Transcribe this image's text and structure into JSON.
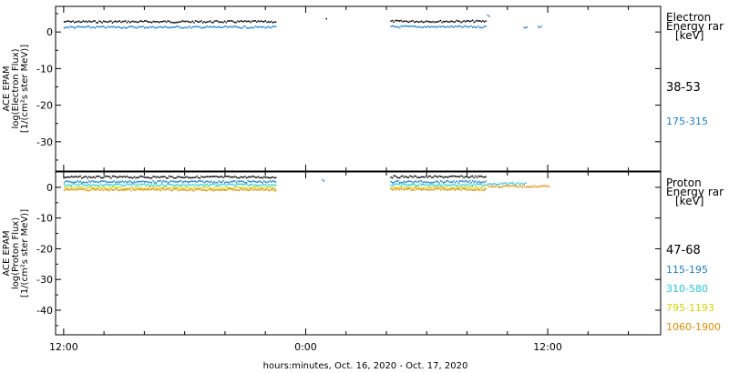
{
  "chart_data": [
    {
      "type": "scatter",
      "ylabel_lines": [
        "ACE EPAM",
        "log(Electron Flux)",
        "[1/(cm²s ster MeV)]"
      ],
      "ylim": [
        -38,
        7
      ],
      "yticks": [
        0,
        -10,
        -20,
        -30
      ],
      "legend": {
        "title_lines": [
          "Electron",
          "Energy rar",
          "[keV]"
        ],
        "entries": [
          {
            "label": "38-53",
            "color": "#000000"
          },
          {
            "label": "175-315",
            "color": "#1a7fcf"
          }
        ]
      },
      "series": [
        {
          "segments": [
            {
              "x": [
                12.0,
                22.5
              ],
              "y": 2.8
            },
            {
              "x": [
                25.0,
                25.0
              ],
              "y": 3.5
            },
            {
              "x": [
                28.2,
                32.9
              ],
              "y": 2.9
            }
          ],
          "color": "#000000"
        },
        {
          "segments": [
            {
              "x": [
                12.0,
                22.5
              ],
              "y": 1.3
            },
            {
              "x": [
                28.2,
                32.9
              ],
              "y": 1.4
            },
            {
              "x": [
                33.0,
                33.1
              ],
              "y": 4.5
            },
            {
              "x": [
                34.8,
                35.0
              ],
              "y": 1.3
            },
            {
              "x": [
                35.5,
                35.7
              ],
              "y": 1.4
            }
          ],
          "color": "#1a7fcf"
        }
      ]
    },
    {
      "type": "scatter",
      "ylabel_lines": [
        "ACE EPAM",
        "log(Proton Flux)",
        "[1/(cm²s ster MeV)]"
      ],
      "ylim": [
        -48,
        5
      ],
      "yticks": [
        0,
        -10,
        -20,
        -30,
        -40
      ],
      "legend": {
        "title_lines": [
          "Proton",
          "Energy rar",
          "[keV]"
        ],
        "entries": [
          {
            "label": "47-68",
            "color": "#000000"
          },
          {
            "label": "115-195",
            "color": "#1a7fcf"
          },
          {
            "label": "310-580",
            "color": "#22c8d8"
          },
          {
            "label": "795-1193",
            "color": "#d4d400"
          },
          {
            "label": "1060-1900",
            "color": "#e08a00"
          }
        ]
      },
      "series": [
        {
          "segments": [
            {
              "x": [
                12.0,
                22.5
              ],
              "y": 3.3
            },
            {
              "x": [
                28.2,
                32.9
              ],
              "y": 3.4
            }
          ],
          "color": "#000000"
        },
        {
          "segments": [
            {
              "x": [
                12.0,
                22.5
              ],
              "y": 1.8
            },
            {
              "x": [
                24.8,
                24.9
              ],
              "y": 2.2
            },
            {
              "x": [
                28.2,
                32.9
              ],
              "y": 1.8
            }
          ],
          "color": "#1a7fcf"
        },
        {
          "segments": [
            {
              "x": [
                12.0,
                22.5
              ],
              "y": 0.8
            },
            {
              "x": [
                28.2,
                32.9
              ],
              "y": 0.8
            },
            {
              "x": [
                33.0,
                34.9
              ],
              "y": 1.2
            }
          ],
          "color": "#22c8d8"
        },
        {
          "segments": [
            {
              "x": [
                12.0,
                22.5
              ],
              "y": -0.2
            },
            {
              "x": [
                28.2,
                32.9
              ],
              "y": -0.1
            }
          ],
          "color": "#d4d400"
        },
        {
          "segments": [
            {
              "x": [
                12.0,
                22.5
              ],
              "y": -0.8
            },
            {
              "x": [
                28.2,
                32.9
              ],
              "y": -0.7
            },
            {
              "x": [
                33.0,
                36.1
              ],
              "y": 0.3
            }
          ],
          "color": "#e08a00"
        }
      ]
    }
  ],
  "xaxis": {
    "label": "hours:minutes, Oct. 16, 2020 - Oct. 17, 2020",
    "range_hours": [
      11.6,
      41.6
    ],
    "major_ticks": [
      {
        "hour": 12,
        "label": "12:00"
      },
      {
        "hour": 24,
        "label": "0:00"
      },
      {
        "hour": 36,
        "label": "12:00"
      }
    ],
    "minor_tick_step_hours": 2
  }
}
